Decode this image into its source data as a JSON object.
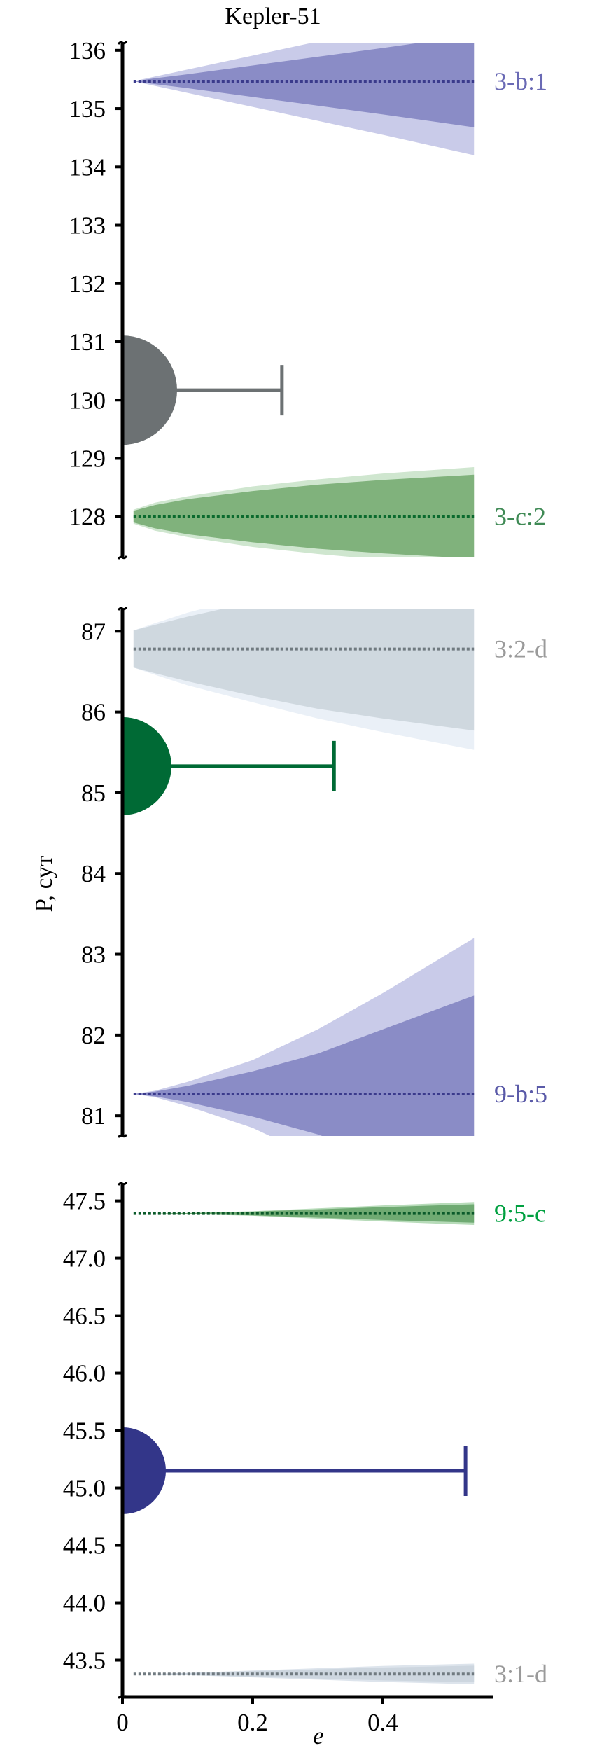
{
  "chart_data": {
    "type": "area",
    "title": "Kepler-51",
    "xlabel": "e",
    "ylabel": "P, сут",
    "xlim": [
      0,
      0.57
    ],
    "x_ticks": [
      "0",
      "0.2",
      "0.4"
    ],
    "x_tick_values": [
      0,
      0.2,
      0.4
    ],
    "grid": false,
    "panels": [
      {
        "ylim": [
          127.3,
          136.13
        ],
        "y_ticks": [
          "128",
          "129",
          "130",
          "131",
          "132",
          "133",
          "134",
          "135",
          "136"
        ],
        "y_tick_values": [
          128,
          129,
          130,
          131,
          132,
          133,
          134,
          135,
          136
        ],
        "bands": [
          {
            "label": "3-b:1",
            "center": 135.47,
            "color_label": "#6a6ab5",
            "color_outer": "#c9cbe9",
            "color_inner": "#8a8cc6",
            "color_line": "#3a3a8c",
            "e": [
              0.017,
              0.05,
              0.1,
              0.2,
              0.3,
              0.4,
              0.54
            ],
            "inner_halfwidth": [
              0,
              0.05,
              0.12,
              0.27,
              0.42,
              0.57,
              0.79
            ],
            "outer_halfwidth": [
              0,
              0.08,
              0.2,
              0.44,
              0.68,
              0.92,
              1.27
            ]
          },
          {
            "label": "3-c:2",
            "center": 128.0,
            "color_label": "#3f8a55",
            "color_outer": "#cfe6cf",
            "color_inner": "#80b27c",
            "color_line": "#0b6a2e",
            "e": [
              0.017,
              0.05,
              0.1,
              0.2,
              0.3,
              0.4,
              0.54
            ],
            "inner_halfwidth": [
              0.1,
              0.2,
              0.3,
              0.44,
              0.55,
              0.63,
              0.72
            ],
            "outer_halfwidth": [
              0.12,
              0.24,
              0.35,
              0.52,
              0.64,
              0.74,
              0.85
            ]
          }
        ],
        "point": {
          "P": 130.17,
          "e": 0,
          "e_max": 0.245,
          "color": "#6c7173"
        }
      },
      {
        "ylim": [
          80.75,
          87.28
        ],
        "y_ticks": [
          "81",
          "82",
          "83",
          "84",
          "85",
          "86",
          "87"
        ],
        "y_tick_values": [
          81,
          82,
          83,
          84,
          85,
          86,
          87
        ],
        "bands": [
          {
            "label": "3:2-d",
            "center": 86.78,
            "color_label": "#9a9a9a",
            "color_outer": "#eaf0f7",
            "color_inner": "#cfd8df",
            "color_line": "#707a80",
            "e": [
              0.017,
              0.05,
              0.1,
              0.2,
              0.3,
              0.4,
              0.54
            ],
            "inner_halfwidth": [
              0.23,
              0.3,
              0.4,
              0.58,
              0.74,
              0.86,
              1.01
            ],
            "outer_halfwidth": [
              0.23,
              0.32,
              0.45,
              0.66,
              0.86,
              1.03,
              1.25
            ]
          },
          {
            "label": "9-b:5",
            "center": 81.27,
            "color_label": "#5a5aa8",
            "color_outer": "#c9cbe9",
            "color_inner": "#8a8cc6",
            "color_line": "#3a3a8c",
            "e": [
              0.017,
              0.05,
              0.1,
              0.2,
              0.3,
              0.4,
              0.54
            ],
            "inner_halfwidth": [
              0,
              0.03,
              0.1,
              0.28,
              0.5,
              0.8,
              1.22
            ],
            "outer_halfwidth": [
              0,
              0.04,
              0.15,
              0.42,
              0.8,
              1.25,
              1.93
            ]
          }
        ],
        "point": {
          "P": 85.33,
          "e": 0,
          "e_max": 0.325,
          "color": "#006a35"
        }
      },
      {
        "ylim": [
          43.18,
          47.65
        ],
        "y_ticks": [
          "43.5",
          "44.0",
          "44.5",
          "45.0",
          "45.5",
          "46.0",
          "46.5",
          "47.0",
          "47.5"
        ],
        "y_tick_values": [
          43.5,
          44.0,
          44.5,
          45.0,
          45.5,
          46.0,
          46.5,
          47.0,
          47.5
        ],
        "bands": [
          {
            "label": "9:5-c",
            "center": 47.39,
            "color_label": "#00a040",
            "color_outer": "#b7dbb9",
            "color_inner": "#6faa72",
            "color_line": "#0b5a2a",
            "e": [
              0.017,
              0.05,
              0.1,
              0.2,
              0.3,
              0.4,
              0.54
            ],
            "inner_halfwidth": [
              0,
              0,
              0.004,
              0.016,
              0.036,
              0.056,
              0.08
            ],
            "outer_halfwidth": [
              0,
              0,
              0.005,
              0.02,
              0.045,
              0.07,
              0.1
            ]
          },
          {
            "label": "3:1-d",
            "center": 43.38,
            "color_label": "#9a9a9a",
            "color_outer": "#dde4ec",
            "color_inner": "#cdd6df",
            "color_line": "#707a80",
            "e": [
              0.017,
              0.05,
              0.1,
              0.2,
              0.3,
              0.4,
              0.54
            ],
            "inner_halfwidth": [
              0,
              0,
              0.008,
              0.024,
              0.04,
              0.056,
              0.072
            ],
            "outer_halfwidth": [
              0,
              0,
              0.01,
              0.03,
              0.05,
              0.07,
              0.09
            ]
          }
        ],
        "point": {
          "P": 45.15,
          "e": 0,
          "e_max": 0.527,
          "color": "#333689"
        }
      }
    ]
  }
}
